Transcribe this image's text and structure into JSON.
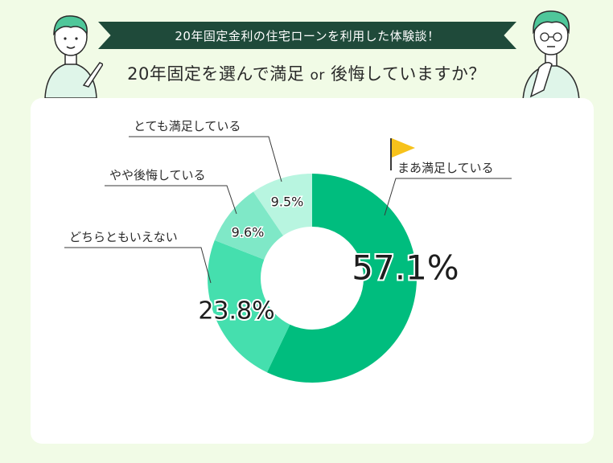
{
  "header": {
    "banner_text": "20年固定金利の住宅ローンを利用した体験談！",
    "question_main": "20年固定を選んで満足",
    "question_or": "or",
    "question_tail": "後悔していますか？"
  },
  "colors": {
    "background": "#f1fbe6",
    "banner": "#1f4a3a",
    "slice_1": "#00bd7e",
    "slice_2": "#45dfae",
    "slice_3": "#7fe8c7",
    "slice_4": "#b8f5e0"
  },
  "icons": [
    "person-pointing-icon",
    "person-thinking-icon",
    "flag-icon"
  ],
  "chart_data": {
    "type": "pie",
    "donut": true,
    "categories": [
      "まあ満足している",
      "どちらともいえない",
      "やや後悔している",
      "とても満足している"
    ],
    "values": [
      57.1,
      23.8,
      9.6,
      9.5
    ],
    "labels": [
      "57.1%",
      "23.8%",
      "9.6%",
      "9.5%"
    ]
  }
}
